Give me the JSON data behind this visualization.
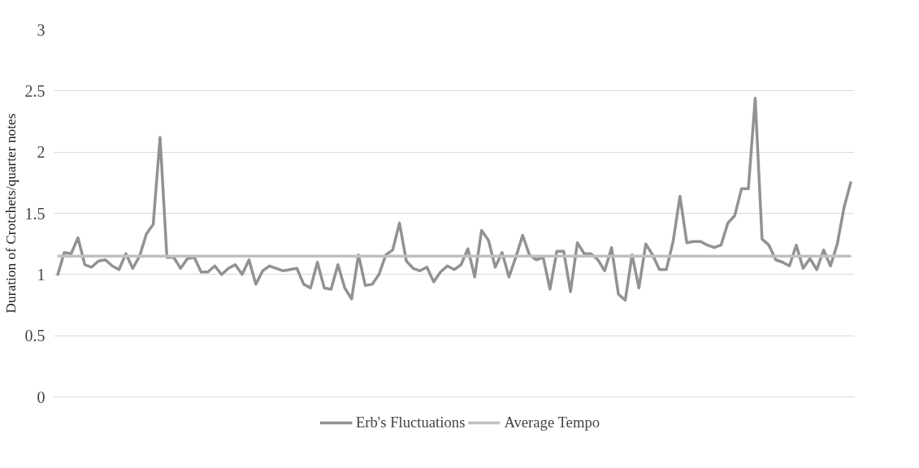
{
  "chart_data": {
    "type": "line",
    "ylabel": "Duration of Crotchets/quarter notes",
    "categories": [
      null,
      null,
      null,
      null,
      null,
      null,
      null,
      null,
      null,
      null,
      null,
      null,
      null,
      null,
      null,
      null,
      null,
      null,
      null,
      null,
      null,
      null,
      null,
      null,
      null,
      null,
      null,
      null,
      null,
      null,
      null,
      null,
      null,
      null,
      null,
      null,
      null,
      null,
      null,
      null,
      null,
      null,
      null,
      null,
      null,
      null,
      null,
      null,
      null,
      null,
      null,
      null,
      null,
      null,
      null,
      null,
      null,
      null,
      null,
      null,
      null,
      null,
      null,
      null,
      null,
      null,
      null,
      null,
      null,
      null,
      null,
      null,
      null,
      null,
      null,
      null,
      null,
      null,
      null,
      null,
      null,
      null,
      null,
      null,
      null,
      null,
      null,
      null,
      null,
      null,
      null,
      null,
      null,
      null,
      null,
      null,
      null,
      null,
      null,
      null,
      null,
      null,
      null,
      null,
      null,
      null,
      null,
      null,
      null,
      null,
      null,
      null,
      null,
      null,
      null,
      null,
      null
    ],
    "series": [
      {
        "name": "Erb's Fluctuations",
        "color": "#929292",
        "values": [
          0.99,
          1.18,
          1.17,
          1.3,
          1.08,
          1.06,
          1.11,
          1.12,
          1.07,
          1.04,
          1.17,
          1.05,
          1.15,
          1.33,
          1.41,
          2.12,
          1.14,
          1.14,
          1.05,
          1.13,
          1.14,
          1.02,
          1.02,
          1.07,
          1.0,
          1.05,
          1.08,
          1.0,
          1.12,
          0.92,
          1.03,
          1.07,
          1.05,
          1.03,
          1.04,
          1.05,
          0.92,
          0.89,
          1.1,
          0.89,
          0.88,
          1.08,
          0.89,
          0.8,
          1.16,
          0.91,
          0.92,
          1.0,
          1.16,
          1.2,
          1.42,
          1.11,
          1.05,
          1.03,
          1.06,
          0.94,
          1.02,
          1.07,
          1.04,
          1.08,
          1.21,
          0.98,
          1.36,
          1.28,
          1.06,
          1.18,
          0.98,
          1.14,
          1.32,
          1.16,
          1.12,
          1.14,
          0.88,
          1.19,
          1.19,
          0.86,
          1.26,
          1.17,
          1.17,
          1.12,
          1.03,
          1.22,
          0.84,
          0.79,
          1.16,
          0.89,
          1.25,
          1.16,
          1.04,
          1.04,
          1.27,
          1.64,
          1.26,
          1.27,
          1.27,
          1.24,
          1.22,
          1.24,
          1.42,
          1.48,
          1.7,
          1.7,
          2.44,
          1.29,
          1.24,
          1.12,
          1.1,
          1.07,
          1.24,
          1.05,
          1.13,
          1.04,
          1.2,
          1.07,
          1.25,
          1.55,
          1.76
        ]
      },
      {
        "name": "Average Tempo",
        "color": "#c0c0c0",
        "values": [
          1.15,
          1.15,
          1.15,
          1.15,
          1.15,
          1.15,
          1.15,
          1.15,
          1.15,
          1.15,
          1.15,
          1.15,
          1.15,
          1.15,
          1.15,
          1.15,
          1.15,
          1.15,
          1.15,
          1.15,
          1.15,
          1.15,
          1.15,
          1.15,
          1.15,
          1.15,
          1.15,
          1.15,
          1.15,
          1.15,
          1.15,
          1.15,
          1.15,
          1.15,
          1.15,
          1.15,
          1.15,
          1.15,
          1.15,
          1.15,
          1.15,
          1.15,
          1.15,
          1.15,
          1.15,
          1.15,
          1.15,
          1.15,
          1.15,
          1.15,
          1.15,
          1.15,
          1.15,
          1.15,
          1.15,
          1.15,
          1.15,
          1.15,
          1.15,
          1.15,
          1.15,
          1.15,
          1.15,
          1.15,
          1.15,
          1.15,
          1.15,
          1.15,
          1.15,
          1.15,
          1.15,
          1.15,
          1.15,
          1.15,
          1.15,
          1.15,
          1.15,
          1.15,
          1.15,
          1.15,
          1.15,
          1.15,
          1.15,
          1.15,
          1.15,
          1.15,
          1.15,
          1.15,
          1.15,
          1.15,
          1.15,
          1.15,
          1.15,
          1.15,
          1.15,
          1.15,
          1.15,
          1.15,
          1.15,
          1.15,
          1.15,
          1.15,
          1.15,
          1.15,
          1.15,
          1.15,
          1.15,
          1.15,
          1.15,
          1.15,
          1.15,
          1.15,
          1.15,
          1.15,
          1.15,
          1.15,
          1.15
        ]
      }
    ],
    "ylim": [
      0,
      3
    ],
    "yticks": [
      0,
      0.5,
      1,
      1.5,
      2,
      2.5,
      3
    ],
    "grid": "y",
    "legend": "bottom",
    "marker": "none",
    "line_style": "solid",
    "tick_labels": "y"
  }
}
